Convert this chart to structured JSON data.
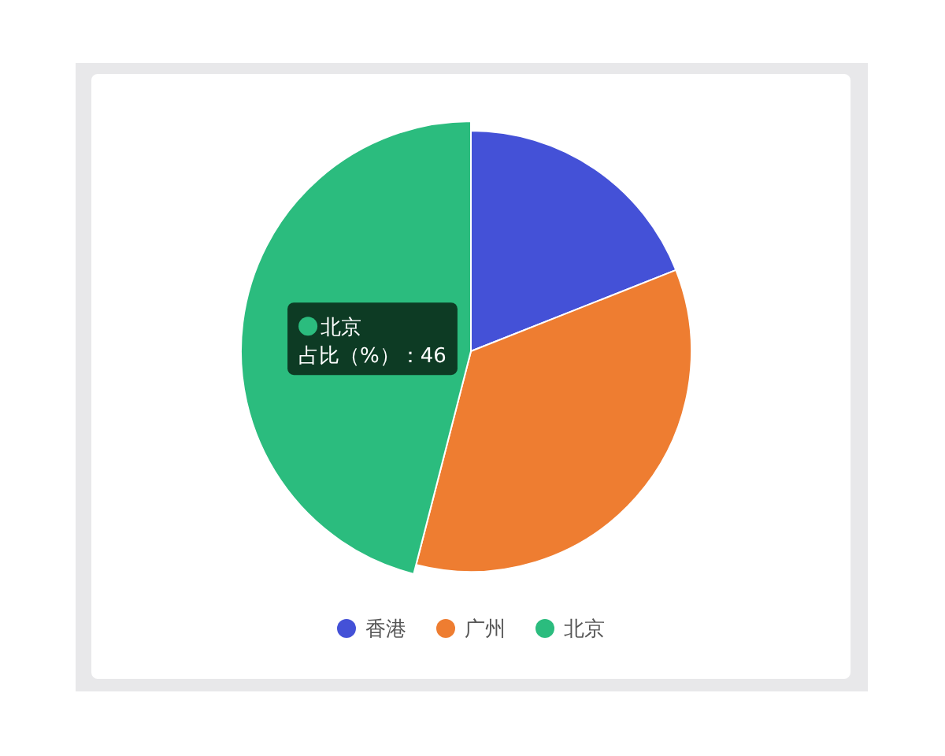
{
  "chart_data": {
    "type": "pie",
    "categories": [
      "香港",
      "广州",
      "北京"
    ],
    "values": [
      19,
      35,
      46
    ],
    "colors": [
      "#4451d7",
      "#ee7d31",
      "#2bbc7e"
    ],
    "value_labels": [
      null,
      null,
      "占比（%）：46"
    ],
    "legend": "bottom"
  }
}
